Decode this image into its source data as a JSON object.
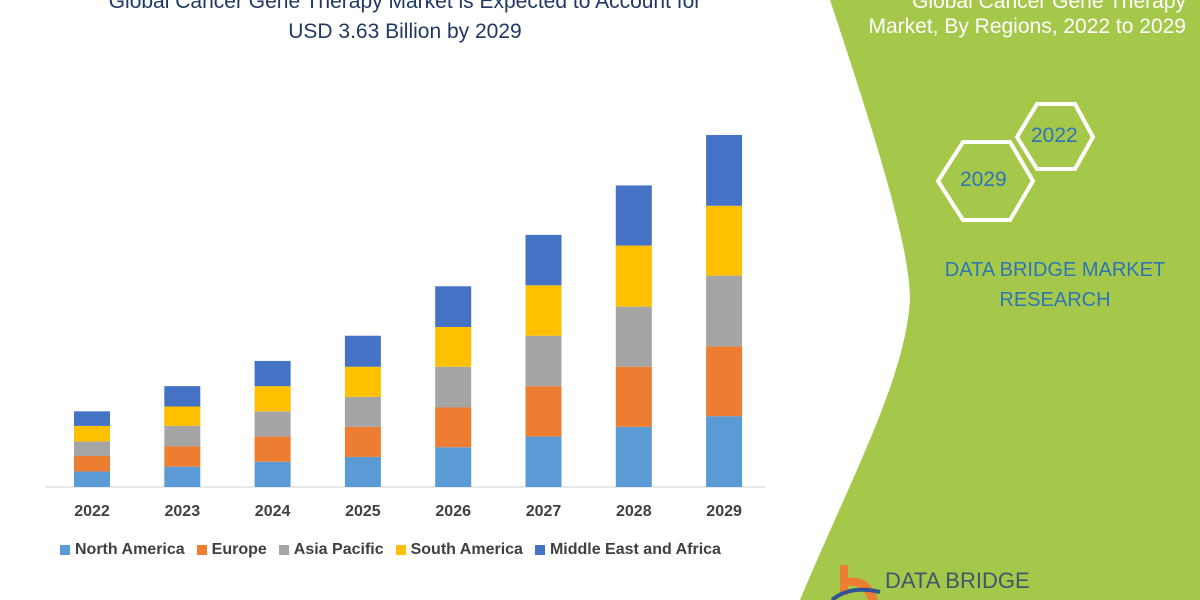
{
  "header": {
    "title_line1": "Global Cancer Gene Therapy Market is Expected to Account for",
    "title_line2": "USD 3.63 Billion by 2029"
  },
  "side_panel": {
    "title_line1": "Global Cancer Gene Therapy",
    "title_line2": "Market, By Regions, 2022 to 2029",
    "hex_1": "2022",
    "hex_2": "2029",
    "brand": "DATA BRIDGE MARKET RESEARCH",
    "logo_text": "DATA BRIDGE",
    "panel_color": "#a5c84a"
  },
  "chart_data": {
    "type": "bar",
    "stacked": true,
    "categories": [
      "2022",
      "2023",
      "2024",
      "2025",
      "2026",
      "2027",
      "2028",
      "2029"
    ],
    "series": [
      {
        "name": "North America",
        "color": "#5b9bd5",
        "values": [
          0.16,
          0.21,
          0.26,
          0.31,
          0.41,
          0.52,
          0.62,
          0.73
        ]
      },
      {
        "name": "Europe",
        "color": "#ed7d31",
        "values": [
          0.16,
          0.21,
          0.26,
          0.31,
          0.41,
          0.52,
          0.62,
          0.72
        ]
      },
      {
        "name": "Asia Pacific",
        "color": "#a5a5a5",
        "values": [
          0.15,
          0.21,
          0.26,
          0.31,
          0.42,
          0.52,
          0.62,
          0.73
        ]
      },
      {
        "name": "South America",
        "color": "#ffc000",
        "values": [
          0.16,
          0.2,
          0.26,
          0.31,
          0.41,
          0.52,
          0.63,
          0.72
        ]
      },
      {
        "name": "Middle East and Africa",
        "color": "#4472c4",
        "values": [
          0.15,
          0.21,
          0.26,
          0.32,
          0.42,
          0.52,
          0.62,
          0.73
        ]
      }
    ],
    "title": "",
    "xlabel": "",
    "ylabel": "",
    "ylim": [
      0,
      3.63
    ],
    "grid": false,
    "legend": "bottom"
  }
}
